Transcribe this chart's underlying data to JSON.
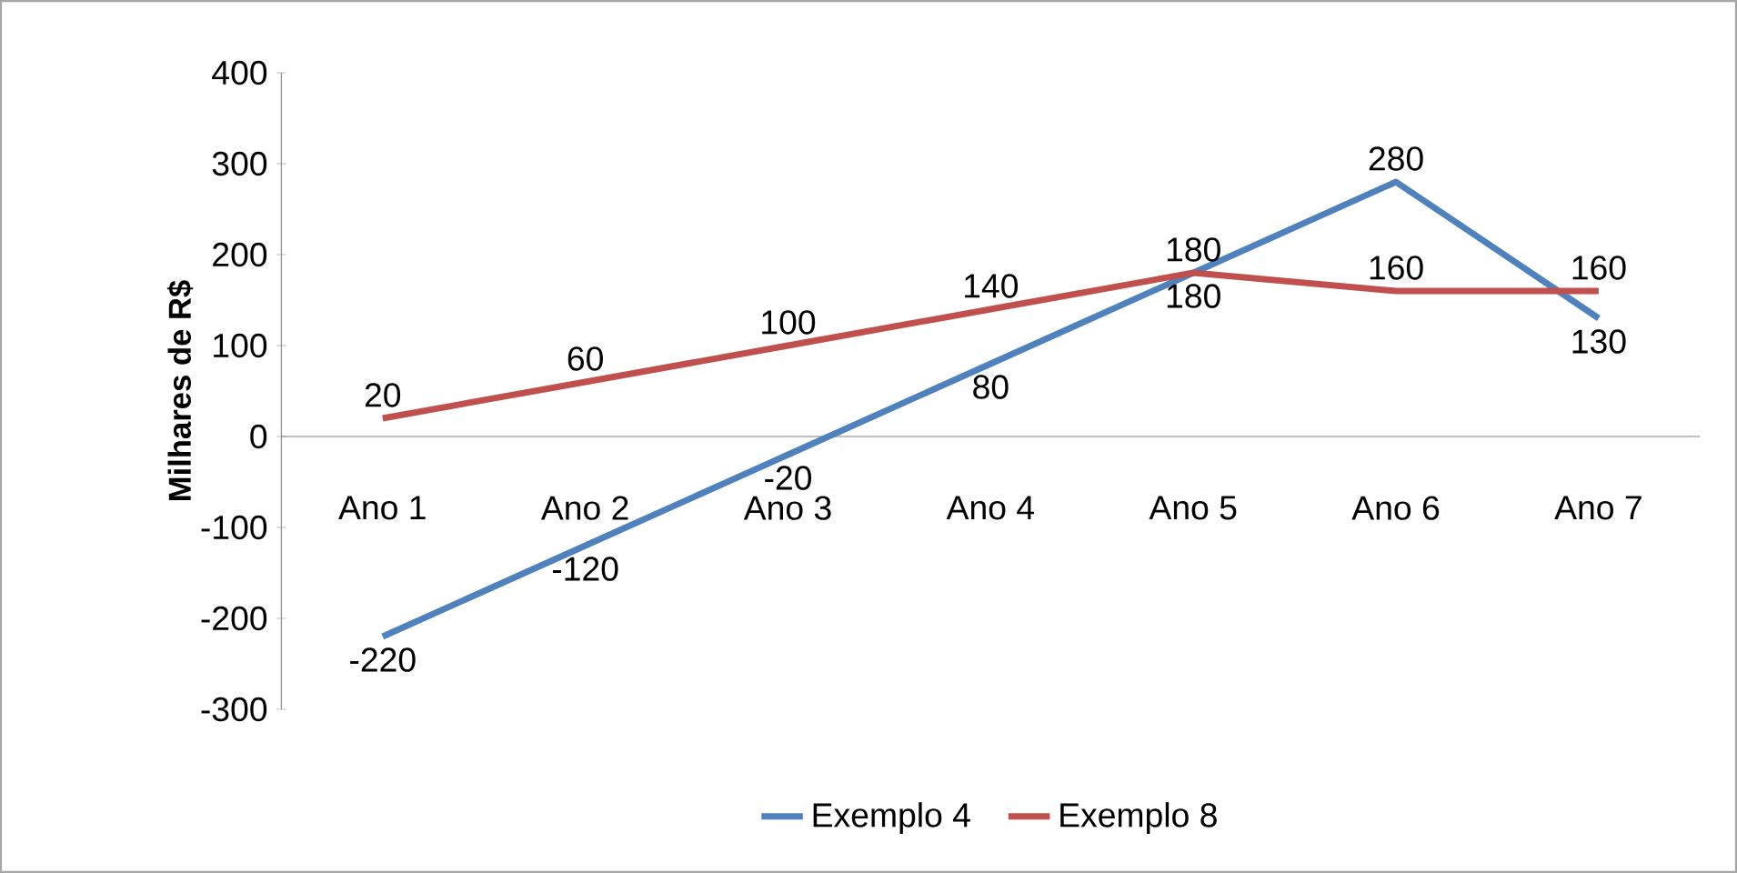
{
  "chart_data": {
    "type": "line",
    "ylabel": "Milhares de R$",
    "categories": [
      "Ano 1",
      "Ano 2",
      "Ano 3",
      "Ano 4",
      "Ano 5",
      "Ano 6",
      "Ano 7"
    ],
    "series": [
      {
        "name": "Exemplo 4",
        "color": "#4f81bd",
        "values": [
          -220,
          -120,
          -20,
          80,
          180,
          280,
          130
        ]
      },
      {
        "name": "Exemplo 8",
        "color": "#c0504d",
        "values": [
          20,
          60,
          100,
          140,
          180,
          160,
          160
        ]
      }
    ],
    "ylim": [
      -300,
      400
    ],
    "yticks": [
      -300,
      -200,
      -100,
      0,
      100,
      200,
      300,
      400
    ],
    "data_labels": true,
    "legend": "bottom",
    "grid": false,
    "marker": "none",
    "line_style": "solid"
  }
}
